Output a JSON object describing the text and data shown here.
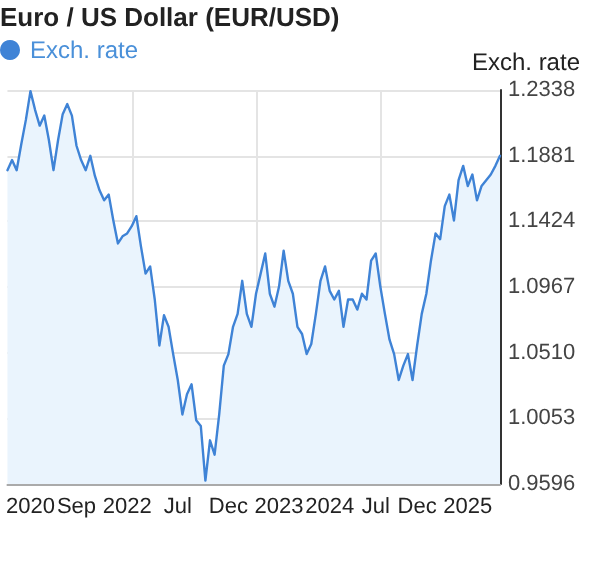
{
  "chart_data": {
    "type": "area",
    "title": "Euro / US Dollar (EUR/USD)",
    "ylabel": "Exch. rate",
    "categories": [
      null,
      null,
      null,
      null,
      null,
      "2020",
      null,
      null,
      null,
      null,
      null,
      null,
      null,
      null,
      null,
      "Sep",
      null,
      null,
      null,
      null,
      null,
      null,
      null,
      null,
      null,
      null,
      "2022",
      null,
      null,
      null,
      null,
      null,
      null,
      null,
      null,
      null,
      null,
      "Jul",
      null,
      null,
      null,
      null,
      null,
      null,
      null,
      null,
      null,
      null,
      "Dec",
      null,
      null,
      null,
      null,
      null,
      null,
      null,
      null,
      null,
      null,
      "2023",
      null,
      null,
      null,
      null,
      null,
      null,
      null,
      null,
      null,
      null,
      "2024",
      null,
      null,
      null,
      null,
      null,
      null,
      null,
      null,
      null,
      "Jul",
      null,
      null,
      null,
      null,
      null,
      null,
      null,
      null,
      "Dec",
      null,
      null,
      null,
      null,
      null,
      null,
      null,
      null,
      null,
      null,
      "2025",
      null,
      null,
      null,
      null,
      null,
      null,
      null
    ],
    "series": [
      {
        "name": "Exch. rate",
        "color": "#3f83d6",
        "values": [
          1.178,
          1.185,
          1.178,
          1.196,
          1.213,
          1.233,
          1.22,
          1.209,
          1.216,
          1.199,
          1.178,
          1.199,
          1.217,
          1.224,
          1.216,
          1.195,
          1.185,
          1.178,
          1.188,
          1.174,
          1.164,
          1.157,
          1.161,
          1.143,
          1.127,
          1.132,
          1.134,
          1.139,
          1.146,
          1.125,
          1.106,
          1.111,
          1.088,
          1.056,
          1.077,
          1.069,
          1.05,
          1.032,
          1.008,
          1.022,
          1.029,
          1.004,
          1.0,
          0.962,
          0.99,
          0.98,
          1.008,
          1.042,
          1.05,
          1.069,
          1.078,
          1.101,
          1.078,
          1.069,
          1.092,
          1.106,
          1.12,
          1.092,
          1.083,
          1.097,
          1.122,
          1.101,
          1.092,
          1.069,
          1.064,
          1.05,
          1.057,
          1.078,
          1.101,
          1.111,
          1.094,
          1.088,
          1.094,
          1.069,
          1.088,
          1.088,
          1.081,
          1.092,
          1.088,
          1.115,
          1.12,
          1.097,
          1.078,
          1.06,
          1.05,
          1.032,
          1.042,
          1.05,
          1.032,
          1.056,
          1.078,
          1.092,
          1.115,
          1.134,
          1.13,
          1.153,
          1.161,
          1.143,
          1.171,
          1.181,
          1.167,
          1.175,
          1.157,
          1.167,
          1.171,
          1.175,
          1.181,
          1.188
        ]
      }
    ],
    "ylim": [
      0.9596,
      1.2338
    ],
    "yticks": [
      0.9596,
      1.0053,
      {
        "value": 1.051,
        "label": "1.0510"
      },
      1.0967,
      1.1424,
      1.1881,
      1.2338
    ],
    "grid": true,
    "legend": "top left",
    "marker": "none",
    "line_style": "solid"
  }
}
